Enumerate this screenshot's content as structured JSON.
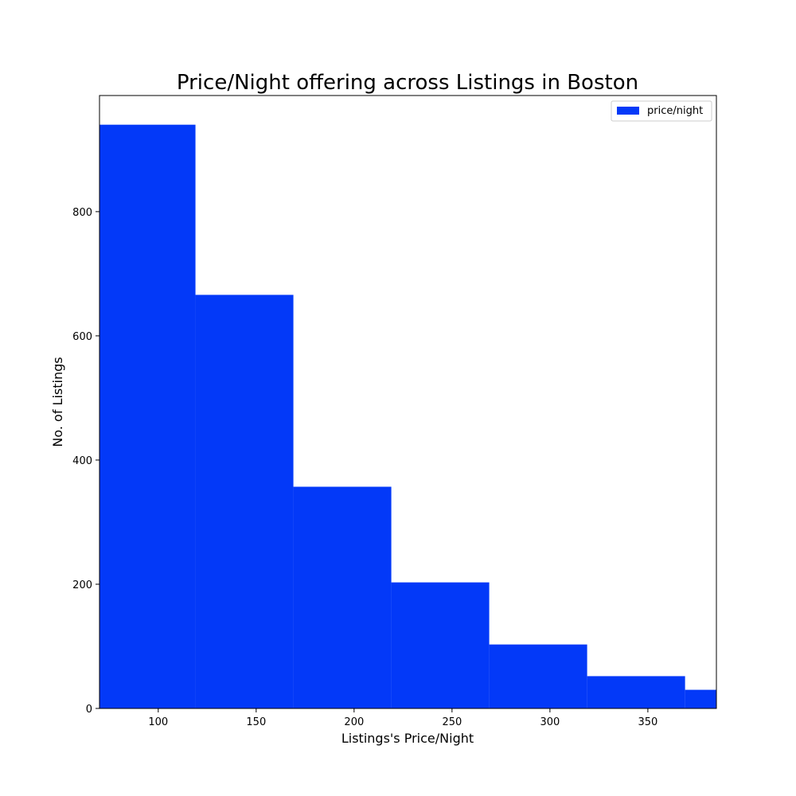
{
  "chart_data": {
    "type": "bar",
    "title": "Price/Night offering across Listings in Boston",
    "xlabel": "Listings's Price/Night",
    "ylabel": "No. of Listings",
    "xlim": [
      70,
      385
    ],
    "ylim": [
      0,
      987
    ],
    "xticks": [
      100,
      150,
      200,
      250,
      300,
      350
    ],
    "yticks": [
      0,
      200,
      400,
      600,
      800
    ],
    "bins": [
      {
        "x0": 70,
        "x1": 119,
        "value": 940
      },
      {
        "x0": 119,
        "x1": 169,
        "value": 666
      },
      {
        "x0": 169,
        "x1": 219,
        "value": 357
      },
      {
        "x0": 219,
        "x1": 269,
        "value": 203
      },
      {
        "x0": 269,
        "x1": 319,
        "value": 103
      },
      {
        "x0": 319,
        "x1": 369,
        "value": 52
      },
      {
        "x0": 369,
        "x1": 385,
        "value": 30
      }
    ],
    "series": [
      {
        "name": "price/night",
        "color": "#0339F8"
      }
    ],
    "legend": {
      "position": "top-right",
      "label": "price/night"
    },
    "grid": false
  }
}
